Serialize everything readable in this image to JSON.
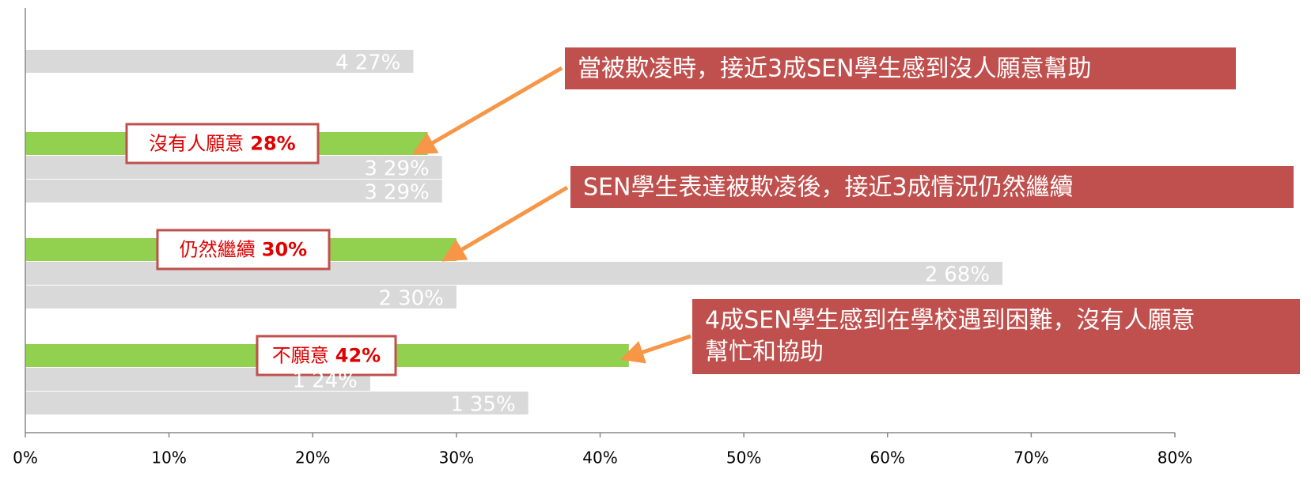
{
  "chart_data": {
    "type": "hbar",
    "categories": [
      "4",
      "沒有人願意",
      "3",
      "3",
      "仍然繼續",
      "2",
      "2",
      "不願意",
      "1",
      "1"
    ],
    "values": [
      27,
      28,
      29,
      29,
      30,
      68,
      30,
      42,
      24,
      35
    ],
    "value_labels": [
      "27%",
      "28%",
      "29%",
      "29%",
      "30%",
      "68%",
      "30%",
      "42%",
      "24%",
      "35%"
    ],
    "colors": [
      "#d9d9d9",
      "#92d050",
      "#d9d9d9",
      "#d9d9d9",
      "#92d050",
      "#d9d9d9",
      "#d9d9d9",
      "#92d050",
      "#d9d9d9",
      "#d9d9d9"
    ],
    "xlim": [
      0,
      80
    ],
    "xticks": [
      {
        "value": 0,
        "label": "0%"
      },
      {
        "value": 10,
        "label": "10%"
      },
      {
        "value": 20,
        "label": "20%"
      },
      {
        "value": 30,
        "label": "30%"
      },
      {
        "value": 40,
        "label": "40%"
      },
      {
        "value": 50,
        "label": "50%"
      },
      {
        "value": 60,
        "label": "60%"
      },
      {
        "value": 70,
        "label": "70%"
      },
      {
        "value": 80,
        "label": "80%"
      }
    ],
    "annotations": [
      {
        "text": [
          "當被欺凌時，接近3成SEN學生感到沒人願意幫助"
        ]
      },
      {
        "text": [
          "SEN學生表達被欺凌後，接近3成情況仍然繼續"
        ]
      },
      {
        "text": [
          "4成SEN學生感到在學校遇到困難，沒有人願意",
          "幫忙和協助"
        ]
      }
    ]
  }
}
